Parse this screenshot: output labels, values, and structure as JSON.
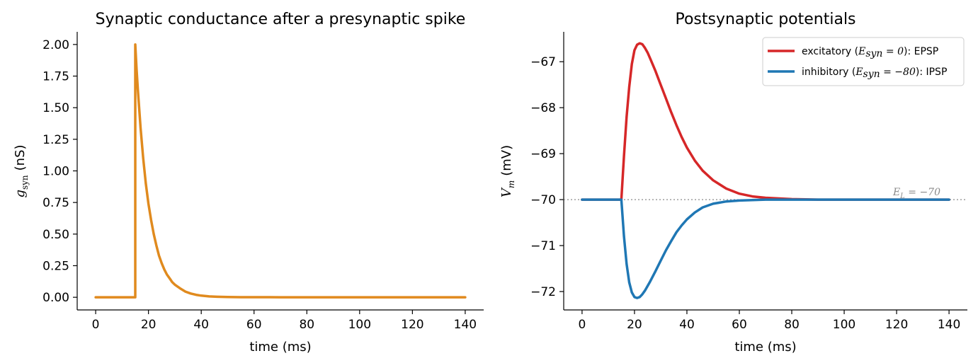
{
  "chart_data": [
    {
      "type": "line",
      "title": "Synaptic conductance after a presynaptic spike",
      "xlabel": "time (ms)",
      "ylabel_symbol": "g",
      "ylabel_sub": "syn",
      "ylabel_unit": "(nS)",
      "xlim": [
        -7,
        147
      ],
      "ylim": [
        -0.1,
        2.1
      ],
      "xticks": [
        0,
        20,
        40,
        60,
        80,
        100,
        120,
        140
      ],
      "xtick_labels": [
        "0",
        "20",
        "40",
        "60",
        "80",
        "100",
        "120",
        "140"
      ],
      "yticks": [
        0,
        0.25,
        0.5,
        0.75,
        1.0,
        1.25,
        1.5,
        1.75,
        2.0
      ],
      "ytick_labels": [
        "0.00",
        "0.25",
        "0.50",
        "0.75",
        "1.00",
        "1.25",
        "1.50",
        "1.75",
        "2.00"
      ],
      "grid": false,
      "series": [
        {
          "color": "#e08a1e",
          "x": [
            0,
            15,
            15,
            15.5,
            16,
            17,
            18,
            19,
            20,
            21,
            22,
            23,
            24,
            25,
            26,
            27,
            28,
            29,
            30,
            32,
            34,
            36,
            38,
            40,
            43,
            46,
            50,
            55,
            60,
            70,
            80,
            100,
            120,
            140
          ],
          "y": [
            0,
            0,
            2.0,
            1.8,
            1.64,
            1.34,
            1.1,
            0.9,
            0.74,
            0.61,
            0.5,
            0.41,
            0.33,
            0.27,
            0.22,
            0.18,
            0.15,
            0.12,
            0.1,
            0.07,
            0.045,
            0.03,
            0.02,
            0.013,
            0.007,
            0.004,
            0.002,
            0.001,
            0.0005,
            0,
            0,
            0,
            0,
            0
          ]
        }
      ]
    },
    {
      "type": "line",
      "title": "Postsynaptic potentials",
      "xlabel": "time (ms)",
      "ylabel_symbol": "V",
      "ylabel_sub": "m",
      "ylabel_unit": "(mV)",
      "xlim": [
        -7,
        147
      ],
      "ylim": [
        -72.4,
        -66.35
      ],
      "xticks": [
        0,
        20,
        40,
        60,
        80,
        100,
        120,
        140
      ],
      "xtick_labels": [
        "0",
        "20",
        "40",
        "60",
        "80",
        "100",
        "120",
        "140"
      ],
      "yticks": [
        -72,
        -71,
        -70,
        -69,
        -68,
        -67
      ],
      "ytick_labels": [
        "−72",
        "−71",
        "−70",
        "−69",
        "−68",
        "−67"
      ],
      "grid": false,
      "legend_position": "top-right",
      "reference_line": {
        "y": -70,
        "color": "#8a8a8a",
        "label_symbol": "E",
        "label_sub": "L",
        "label_rest": " = −70"
      },
      "series": [
        {
          "name_prefix": "excitatory (",
          "name_symbol": "E",
          "name_sub": "syn",
          "name_eq": " = 0",
          "name_suffix": "): EPSP",
          "color": "#d62728",
          "x": [
            0,
            15,
            16,
            17,
            18,
            19,
            20,
            21,
            22,
            23,
            24,
            25,
            26,
            28,
            30,
            32,
            34,
            36,
            38,
            40,
            43,
            46,
            50,
            55,
            60,
            65,
            70,
            80,
            90,
            100,
            120,
            140
          ],
          "y": [
            -70,
            -70,
            -69.05,
            -68.2,
            -67.55,
            -67.05,
            -66.75,
            -66.63,
            -66.6,
            -66.62,
            -66.7,
            -66.8,
            -66.93,
            -67.2,
            -67.5,
            -67.8,
            -68.1,
            -68.38,
            -68.64,
            -68.87,
            -69.15,
            -69.37,
            -69.58,
            -69.76,
            -69.87,
            -69.93,
            -69.96,
            -69.99,
            -70.0,
            -70.0,
            -70.0,
            -70.0
          ]
        },
        {
          "name_prefix": "inhibitory (",
          "name_symbol": "E",
          "name_sub": "syn",
          "name_eq": " = −80",
          "name_suffix": "): IPSP",
          "color": "#1f77b4",
          "x": [
            0,
            15,
            16,
            17,
            18,
            19,
            20,
            21,
            22,
            23,
            24,
            25,
            26,
            28,
            30,
            32,
            34,
            36,
            38,
            40,
            43,
            46,
            50,
            55,
            60,
            65,
            70,
            80,
            90,
            100,
            120,
            140
          ],
          "y": [
            -70,
            -70,
            -70.8,
            -71.4,
            -71.8,
            -72.02,
            -72.12,
            -72.14,
            -72.12,
            -72.06,
            -71.98,
            -71.88,
            -71.78,
            -71.56,
            -71.33,
            -71.1,
            -70.9,
            -70.71,
            -70.56,
            -70.43,
            -70.28,
            -70.17,
            -70.09,
            -70.04,
            -70.02,
            -70.01,
            -70.0,
            -70.0,
            -70.0,
            -70.0,
            -70.0,
            -70.0
          ]
        }
      ]
    }
  ]
}
